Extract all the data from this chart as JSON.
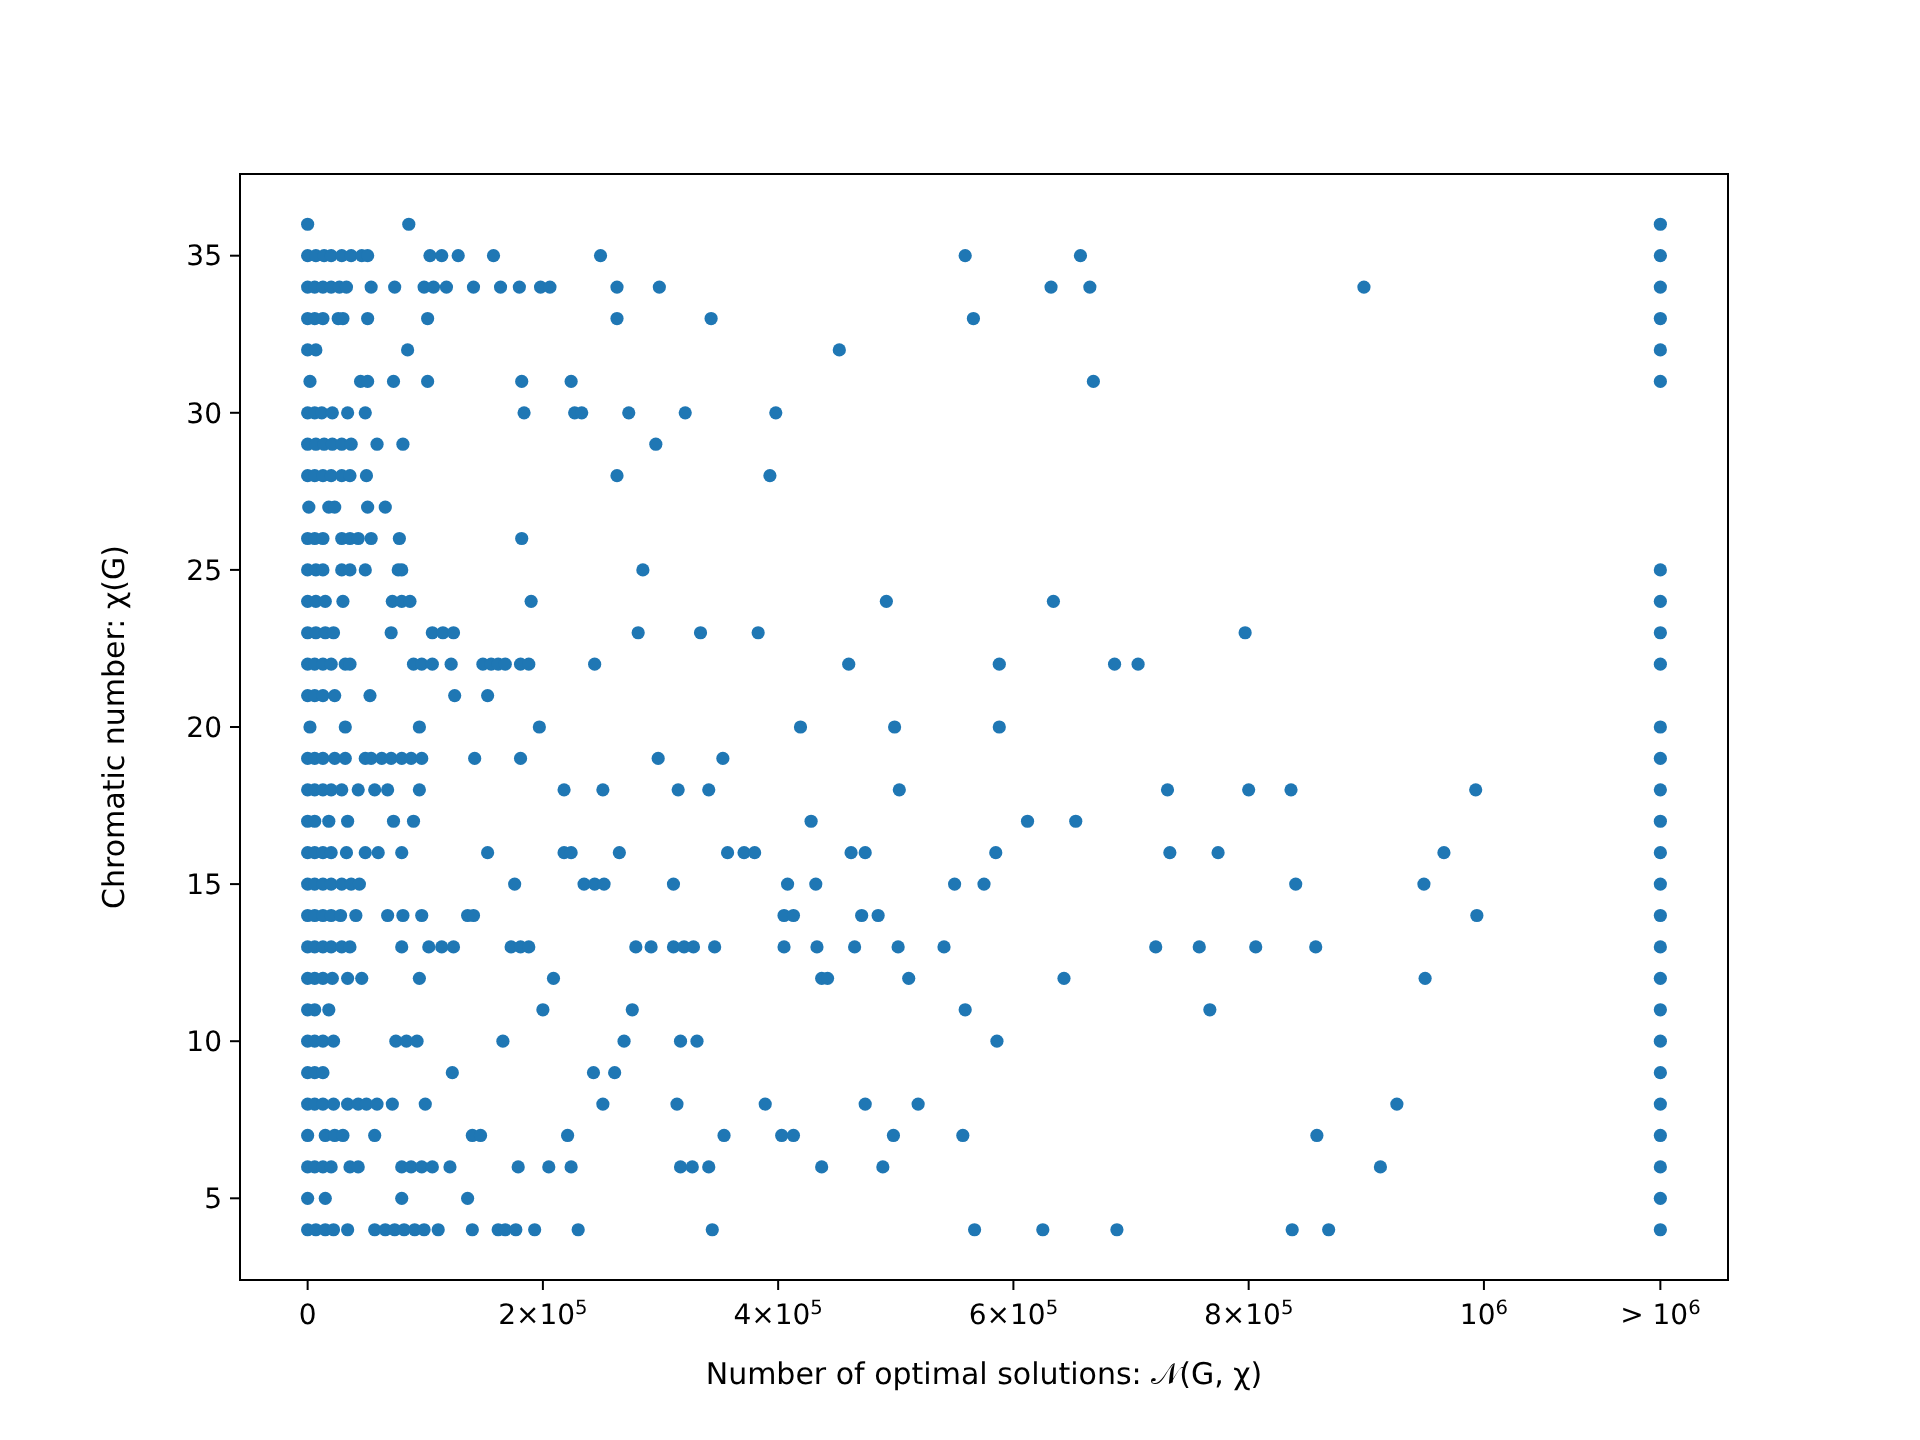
{
  "chart_data": {
    "type": "scatter",
    "xlabel": "Number of optimal solutions: 𝒩(G, χ)",
    "ylabel": "Chromatic number: χ(G)",
    "marker": "circle",
    "xlim": [
      -57500,
      1207500
    ],
    "ylim": [
      2.4,
      37.6
    ],
    "xticks": [
      {
        "value": 0,
        "label": "0"
      },
      {
        "value": 200000,
        "label": "2×10$^{5}$"
      },
      {
        "value": 400000,
        "label": "4×10$^{5}$"
      },
      {
        "value": 600000,
        "label": "6×10$^{5}$"
      },
      {
        "value": 800000,
        "label": "8×10$^{5}$"
      },
      {
        "value": 1000000,
        "label": "10$^{6}$"
      },
      {
        "value": 1150000,
        "label": "> 10$^{6}$"
      }
    ],
    "yticks": [
      5,
      10,
      15,
      20,
      25,
      30,
      35
    ],
    "series": [
      {
        "color": "#1f77b4",
        "x": [
          0,
          86000,
          1150000
        ],
        "values": [
          36,
          36,
          36
        ]
      },
      {
        "color": "#1f77b4",
        "x": [
          0,
          7000,
          14000,
          20000,
          29000,
          37000,
          46000,
          51000,
          104000,
          114000,
          128000,
          158000,
          249000,
          559000,
          657000,
          1150000
        ],
        "values": [
          35,
          35,
          35,
          35,
          35,
          35,
          35,
          35,
          35,
          35,
          35,
          35,
          35,
          35,
          35,
          35
        ]
      },
      {
        "color": "#1f77b4",
        "x": [
          0,
          6000,
          13000,
          20000,
          27000,
          33000,
          54000,
          74000,
          99000,
          107000,
          118000,
          141000,
          164000,
          180000,
          198000,
          206000,
          263000,
          299000,
          632000,
          665000,
          898000,
          1150000
        ],
        "values": [
          34,
          34,
          34,
          34,
          34,
          34,
          34,
          34,
          34,
          34,
          34,
          34,
          34,
          34,
          34,
          34,
          34,
          34,
          34,
          34,
          34,
          34
        ]
      },
      {
        "color": "#1f77b4",
        "x": [
          0,
          6000,
          13000,
          26000,
          30000,
          51000,
          102000,
          263000,
          343000,
          566000,
          1150000
        ],
        "values": [
          33,
          33,
          33,
          33,
          33,
          33,
          33,
          33,
          33,
          33,
          33
        ]
      },
      {
        "color": "#1f77b4",
        "x": [
          0,
          7000,
          85000,
          452000,
          1150000
        ],
        "values": [
          32,
          32,
          32,
          32,
          32
        ]
      },
      {
        "color": "#1f77b4",
        "x": [
          2000,
          45000,
          51000,
          73000,
          102000,
          182000,
          224000,
          668000,
          1150000
        ],
        "values": [
          31,
          31,
          31,
          31,
          31,
          31,
          31,
          31,
          31
        ]
      },
      {
        "color": "#1f77b4",
        "x": [
          0,
          6000,
          12000,
          21000,
          34000,
          49000,
          184000,
          227000,
          233000,
          273000,
          321000,
          398000
        ],
        "values": [
          30,
          30,
          30,
          30,
          30,
          30,
          30,
          30,
          30,
          30,
          30,
          30
        ]
      },
      {
        "color": "#1f77b4",
        "x": [
          0,
          7000,
          14000,
          21000,
          29000,
          37000,
          59000,
          81000,
          296000
        ],
        "values": [
          29,
          29,
          29,
          29,
          29,
          29,
          29,
          29,
          29
        ]
      },
      {
        "color": "#1f77b4",
        "x": [
          0,
          6000,
          13000,
          20000,
          29000,
          36000,
          50000,
          263000,
          393000
        ],
        "values": [
          28,
          28,
          28,
          28,
          28,
          28,
          28,
          28,
          28
        ]
      },
      {
        "color": "#1f77b4",
        "x": [
          1000,
          18000,
          23000,
          51000,
          66000
        ],
        "values": [
          27,
          27,
          27,
          27,
          27
        ]
      },
      {
        "color": "#1f77b4",
        "x": [
          0,
          6000,
          13000,
          29000,
          36000,
          43000,
          54000,
          78000,
          182000
        ],
        "values": [
          26,
          26,
          26,
          26,
          26,
          26,
          26,
          26,
          26
        ]
      },
      {
        "color": "#1f77b4",
        "x": [
          0,
          7000,
          13000,
          29000,
          36000,
          49000,
          77000,
          80000,
          285000,
          1150000
        ],
        "values": [
          25,
          25,
          25,
          25,
          25,
          25,
          25,
          25,
          25,
          25
        ]
      },
      {
        "color": "#1f77b4",
        "x": [
          0,
          7000,
          15000,
          30000,
          72000,
          80000,
          87000,
          190000,
          492000,
          634000,
          1150000
        ],
        "values": [
          24,
          24,
          24,
          24,
          24,
          24,
          24,
          24,
          24,
          24,
          24
        ]
      },
      {
        "color": "#1f77b4",
        "x": [
          0,
          7000,
          15000,
          22000,
          71000,
          106000,
          115000,
          124000,
          281000,
          334000,
          383000,
          797000,
          1150000
        ],
        "values": [
          23,
          23,
          23,
          23,
          23,
          23,
          23,
          23,
          23,
          23,
          23,
          23,
          23
        ]
      },
      {
        "color": "#1f77b4",
        "x": [
          0,
          6000,
          13000,
          20000,
          32000,
          36000,
          90000,
          97000,
          106000,
          122000,
          149000,
          156000,
          162000,
          168000,
          181000,
          188000,
          244000,
          460000,
          588000,
          686000,
          706000,
          1150000
        ],
        "values": [
          22,
          22,
          22,
          22,
          22,
          22,
          22,
          22,
          22,
          22,
          22,
          22,
          22,
          22,
          22,
          22,
          22,
          22,
          22,
          22,
          22,
          22
        ]
      },
      {
        "color": "#1f77b4",
        "x": [
          0,
          6000,
          13000,
          23000,
          53000,
          125000,
          153000
        ],
        "values": [
          21,
          21,
          21,
          21,
          21,
          21,
          21
        ]
      },
      {
        "color": "#1f77b4",
        "x": [
          2000,
          32000,
          95000,
          197000,
          419000,
          499000,
          588000,
          1150000
        ],
        "values": [
          20,
          20,
          20,
          20,
          20,
          20,
          20,
          20
        ]
      },
      {
        "color": "#1f77b4",
        "x": [
          0,
          6000,
          13000,
          23000,
          32000,
          49000,
          54000,
          63000,
          71000,
          80000,
          88000,
          97000,
          142000,
          181000,
          298000,
          353000,
          1150000
        ],
        "values": [
          19,
          19,
          19,
          19,
          19,
          19,
          19,
          19,
          19,
          19,
          19,
          19,
          19,
          19,
          19,
          19,
          19
        ]
      },
      {
        "color": "#1f77b4",
        "x": [
          0,
          6000,
          13000,
          20000,
          29000,
          43000,
          57000,
          68000,
          95000,
          218000,
          251000,
          315000,
          341000,
          503000,
          731000,
          800000,
          836000,
          993000,
          1150000
        ],
        "values": [
          18,
          18,
          18,
          18,
          18,
          18,
          18,
          18,
          18,
          18,
          18,
          18,
          18,
          18,
          18,
          18,
          18,
          18,
          18
        ]
      },
      {
        "color": "#1f77b4",
        "x": [
          0,
          6000,
          18000,
          34000,
          73000,
          90000,
          428000,
          612000,
          653000,
          1150000
        ],
        "values": [
          17,
          17,
          17,
          17,
          17,
          17,
          17,
          17,
          17,
          17
        ]
      },
      {
        "color": "#1f77b4",
        "x": [
          0,
          6000,
          13000,
          20000,
          33000,
          49000,
          60000,
          80000,
          153000,
          218000,
          224000,
          265000,
          357000,
          371000,
          380000,
          462000,
          474000,
          585000,
          733000,
          774000,
          966000,
          1150000
        ],
        "values": [
          16,
          16,
          16,
          16,
          16,
          16,
          16,
          16,
          16,
          16,
          16,
          16,
          16,
          16,
          16,
          16,
          16,
          16,
          16,
          16,
          16,
          16
        ]
      },
      {
        "color": "#1f77b4",
        "x": [
          0,
          6000,
          13000,
          20000,
          29000,
          37000,
          44000,
          176000,
          235000,
          244000,
          252000,
          311000,
          408000,
          432000,
          550000,
          575000,
          840000,
          949000,
          1150000
        ],
        "values": [
          15,
          15,
          15,
          15,
          15,
          15,
          15,
          15,
          15,
          15,
          15,
          15,
          15,
          15,
          15,
          15,
          15,
          15,
          15
        ]
      },
      {
        "color": "#1f77b4",
        "x": [
          0,
          6000,
          13000,
          20000,
          28000,
          41000,
          68000,
          81000,
          97000,
          136000,
          141000,
          405000,
          413000,
          471000,
          485000,
          994000,
          1150000
        ],
        "values": [
          14,
          14,
          14,
          14,
          14,
          14,
          14,
          14,
          14,
          14,
          14,
          14,
          14,
          14,
          14,
          14,
          14
        ]
      },
      {
        "color": "#1f77b4",
        "x": [
          0,
          6000,
          13000,
          20000,
          29000,
          36000,
          80000,
          103000,
          114000,
          124000,
          173000,
          181000,
          188000,
          279000,
          292000,
          311000,
          320000,
          328000,
          346000,
          405000,
          433000,
          465000,
          502000,
          541000,
          721000,
          758000,
          806000,
          857000,
          1150000
        ],
        "values": [
          13,
          13,
          13,
          13,
          13,
          13,
          13,
          13,
          13,
          13,
          13,
          13,
          13,
          13,
          13,
          13,
          13,
          13,
          13,
          13,
          13,
          13,
          13,
          13,
          13,
          13,
          13,
          13,
          13
        ]
      },
      {
        "color": "#1f77b4",
        "x": [
          0,
          6000,
          13000,
          21000,
          34000,
          46000,
          95000,
          209000,
          437000,
          442000,
          511000,
          643000,
          950000,
          1150000
        ],
        "values": [
          12,
          12,
          12,
          12,
          12,
          12,
          12,
          12,
          12,
          12,
          12,
          12,
          12,
          12
        ]
      },
      {
        "color": "#1f77b4",
        "x": [
          0,
          6000,
          18000,
          200000,
          276000,
          559000,
          767000,
          1150000
        ],
        "values": [
          11,
          11,
          11,
          11,
          11,
          11,
          11,
          11
        ]
      },
      {
        "color": "#1f77b4",
        "x": [
          0,
          6000,
          13000,
          22000,
          75000,
          84000,
          93000,
          166000,
          269000,
          317000,
          331000,
          586000,
          1150000
        ],
        "values": [
          10,
          10,
          10,
          10,
          10,
          10,
          10,
          10,
          10,
          10,
          10,
          10,
          10
        ]
      },
      {
        "color": "#1f77b4",
        "x": [
          0,
          6000,
          13000,
          123000,
          243000,
          261000,
          1150000
        ],
        "values": [
          9,
          9,
          9,
          9,
          9,
          9,
          9
        ]
      },
      {
        "color": "#1f77b4",
        "x": [
          0,
          6000,
          13000,
          22000,
          34000,
          43000,
          50000,
          59000,
          72000,
          100000,
          251000,
          314000,
          389000,
          474000,
          519000,
          926000,
          1150000
        ],
        "values": [
          8,
          8,
          8,
          8,
          8,
          8,
          8,
          8,
          8,
          8,
          8,
          8,
          8,
          8,
          8,
          8,
          8
        ]
      },
      {
        "color": "#1f77b4",
        "x": [
          0,
          15000,
          23000,
          30000,
          57000,
          140000,
          147000,
          221000,
          354000,
          403000,
          413000,
          498000,
          557000,
          858000,
          1150000
        ],
        "values": [
          7,
          7,
          7,
          7,
          7,
          7,
          7,
          7,
          7,
          7,
          7,
          7,
          7,
          7,
          7
        ]
      },
      {
        "color": "#1f77b4",
        "x": [
          0,
          6000,
          13000,
          20000,
          36000,
          43000,
          80000,
          88000,
          97000,
          106000,
          121000,
          179000,
          205000,
          224000,
          317000,
          327000,
          341000,
          437000,
          489000,
          912000,
          1150000
        ],
        "values": [
          6,
          6,
          6,
          6,
          6,
          6,
          6,
          6,
          6,
          6,
          6,
          6,
          6,
          6,
          6,
          6,
          6,
          6,
          6,
          6,
          6
        ]
      },
      {
        "color": "#1f77b4",
        "x": [
          0,
          15000,
          80000,
          136000,
          1150000
        ],
        "values": [
          5,
          5,
          5,
          5,
          5
        ]
      },
      {
        "color": "#1f77b4",
        "x": [
          0,
          7000,
          15000,
          22000,
          34000,
          57000,
          66000,
          74000,
          82000,
          91000,
          99000,
          111000,
          140000,
          162000,
          168000,
          177000,
          193000,
          230000,
          344000,
          567000,
          625000,
          688000,
          837000,
          868000,
          1150000
        ],
        "values": [
          4,
          4,
          4,
          4,
          4,
          4,
          4,
          4,
          4,
          4,
          4,
          4,
          4,
          4,
          4,
          4,
          4,
          4,
          4,
          4,
          4,
          4,
          4,
          4,
          4
        ]
      }
    ]
  }
}
